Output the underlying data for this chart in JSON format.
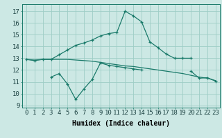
{
  "xlabel": "Humidex (Indice chaleur)",
  "x": [
    0,
    1,
    2,
    3,
    4,
    5,
    6,
    7,
    8,
    9,
    10,
    11,
    12,
    13,
    14,
    15,
    16,
    17,
    18,
    19,
    20,
    21,
    22,
    23
  ],
  "line1": [
    12.9,
    12.8,
    12.9,
    12.9,
    13.3,
    13.7,
    14.1,
    14.3,
    14.55,
    14.9,
    15.1,
    15.2,
    17.0,
    16.6,
    16.1,
    14.4,
    13.9,
    13.35,
    13.0,
    13.0,
    13.0,
    null,
    null,
    null
  ],
  "line2": [
    12.9,
    12.85,
    12.9,
    12.9,
    12.9,
    12.9,
    12.85,
    12.8,
    12.75,
    12.65,
    12.55,
    12.45,
    12.35,
    12.3,
    12.2,
    12.1,
    12.0,
    11.9,
    11.8,
    11.7,
    11.55,
    11.4,
    11.3,
    11.1
  ],
  "line3": [
    null,
    null,
    null,
    11.4,
    11.7,
    10.8,
    9.5,
    10.4,
    11.2,
    12.6,
    12.4,
    12.3,
    12.2,
    12.1,
    12.0,
    null,
    null,
    null,
    null,
    null,
    11.9,
    11.3,
    11.35,
    11.05
  ],
  "line_color": "#1a7a6a",
  "bg_color": "#cce8e4",
  "grid_color": "#9ecdc6",
  "ylim": [
    8.8,
    17.6
  ],
  "yticks": [
    9,
    10,
    11,
    12,
    13,
    14,
    15,
    16,
    17
  ],
  "xlim": [
    -0.5,
    23.5
  ],
  "xlabel_fontsize": 7,
  "tick_fontsize": 6.5
}
